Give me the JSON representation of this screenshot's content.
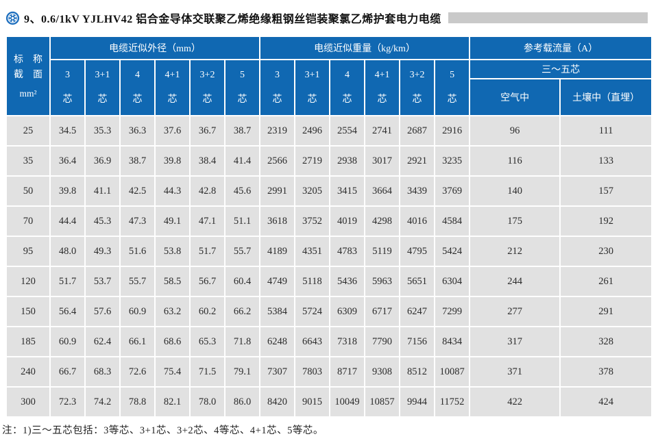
{
  "page": {
    "title": "9、0.6/1kV YJLHV42 铝合金导体交联聚乙烯绝缘粗钢丝铠装聚氯乙烯护套电力电缆",
    "footnote": "注：1)三～五芯包括：3等芯、3+1芯、3+2芯、4等芯、4+1芯、5等芯。"
  },
  "colors": {
    "header_blue": "#1068b2",
    "cell_gray": "#e1e1e1",
    "rule_gray": "#c9c9c9",
    "logo_blue": "#1e6fbe"
  },
  "icons": {
    "logo": "circular-gear-logo-icon"
  },
  "table": {
    "size_header": {
      "line1": "标　称",
      "line2": "截　面",
      "unit": "mm²"
    },
    "groups": {
      "diameter": "电缆近似外径（mm）",
      "weight": "电缆近似重量（kg/km）",
      "ampacity": "参考载流量（A）"
    },
    "core_cols": [
      "3",
      "3+1",
      "4",
      "4+1",
      "3+2",
      "5"
    ],
    "core_suffix": "芯",
    "ampacity_subheader": "三～五芯",
    "ampacity_cols": {
      "air": "空气中",
      "soil": "土壤中（直埋）"
    },
    "rows": [
      {
        "size": "25",
        "diameter": [
          "34.5",
          "35.3",
          "36.3",
          "37.6",
          "36.7",
          "38.7"
        ],
        "weight": [
          "2319",
          "2496",
          "2554",
          "2741",
          "2687",
          "2916"
        ],
        "ampacity": [
          "96",
          "111"
        ]
      },
      {
        "size": "35",
        "diameter": [
          "36.4",
          "36.9",
          "38.7",
          "39.8",
          "38.4",
          "41.4"
        ],
        "weight": [
          "2566",
          "2719",
          "2938",
          "3017",
          "2921",
          "3235"
        ],
        "ampacity": [
          "116",
          "133"
        ]
      },
      {
        "size": "50",
        "diameter": [
          "39.8",
          "41.1",
          "42.5",
          "44.3",
          "42.8",
          "45.6"
        ],
        "weight": [
          "2991",
          "3205",
          "3415",
          "3664",
          "3439",
          "3769"
        ],
        "ampacity": [
          "140",
          "157"
        ]
      },
      {
        "size": "70",
        "diameter": [
          "44.4",
          "45.3",
          "47.3",
          "49.1",
          "47.1",
          "51.1"
        ],
        "weight": [
          "3618",
          "3752",
          "4019",
          "4298",
          "4016",
          "4584"
        ],
        "ampacity": [
          "175",
          "192"
        ]
      },
      {
        "size": "95",
        "diameter": [
          "48.0",
          "49.3",
          "51.6",
          "53.8",
          "51.7",
          "55.7"
        ],
        "weight": [
          "4189",
          "4351",
          "4783",
          "5119",
          "4795",
          "5424"
        ],
        "ampacity": [
          "212",
          "230"
        ]
      },
      {
        "size": "120",
        "diameter": [
          "51.7",
          "53.7",
          "55.7",
          "58.5",
          "56.7",
          "60.4"
        ],
        "weight": [
          "4749",
          "5118",
          "5436",
          "5963",
          "5651",
          "6304"
        ],
        "ampacity": [
          "244",
          "261"
        ]
      },
      {
        "size": "150",
        "diameter": [
          "56.4",
          "57.6",
          "60.9",
          "63.2",
          "60.2",
          "66.2"
        ],
        "weight": [
          "5384",
          "5724",
          "6309",
          "6717",
          "6247",
          "7299"
        ],
        "ampacity": [
          "277",
          "291"
        ]
      },
      {
        "size": "185",
        "diameter": [
          "60.9",
          "62.4",
          "66.1",
          "68.6",
          "65.3",
          "71.8"
        ],
        "weight": [
          "6248",
          "6643",
          "7318",
          "7790",
          "7156",
          "8434"
        ],
        "ampacity": [
          "317",
          "328"
        ]
      },
      {
        "size": "240",
        "diameter": [
          "66.7",
          "68.3",
          "72.6",
          "75.4",
          "71.5",
          "79.1"
        ],
        "weight": [
          "7307",
          "7803",
          "8717",
          "9308",
          "8512",
          "10087"
        ],
        "ampacity": [
          "371",
          "378"
        ]
      },
      {
        "size": "300",
        "diameter": [
          "72.3",
          "74.2",
          "78.8",
          "82.1",
          "78.0",
          "86.0"
        ],
        "weight": [
          "8420",
          "9015",
          "10049",
          "10857",
          "9944",
          "11752"
        ],
        "ampacity": [
          "422",
          "424"
        ]
      }
    ]
  }
}
